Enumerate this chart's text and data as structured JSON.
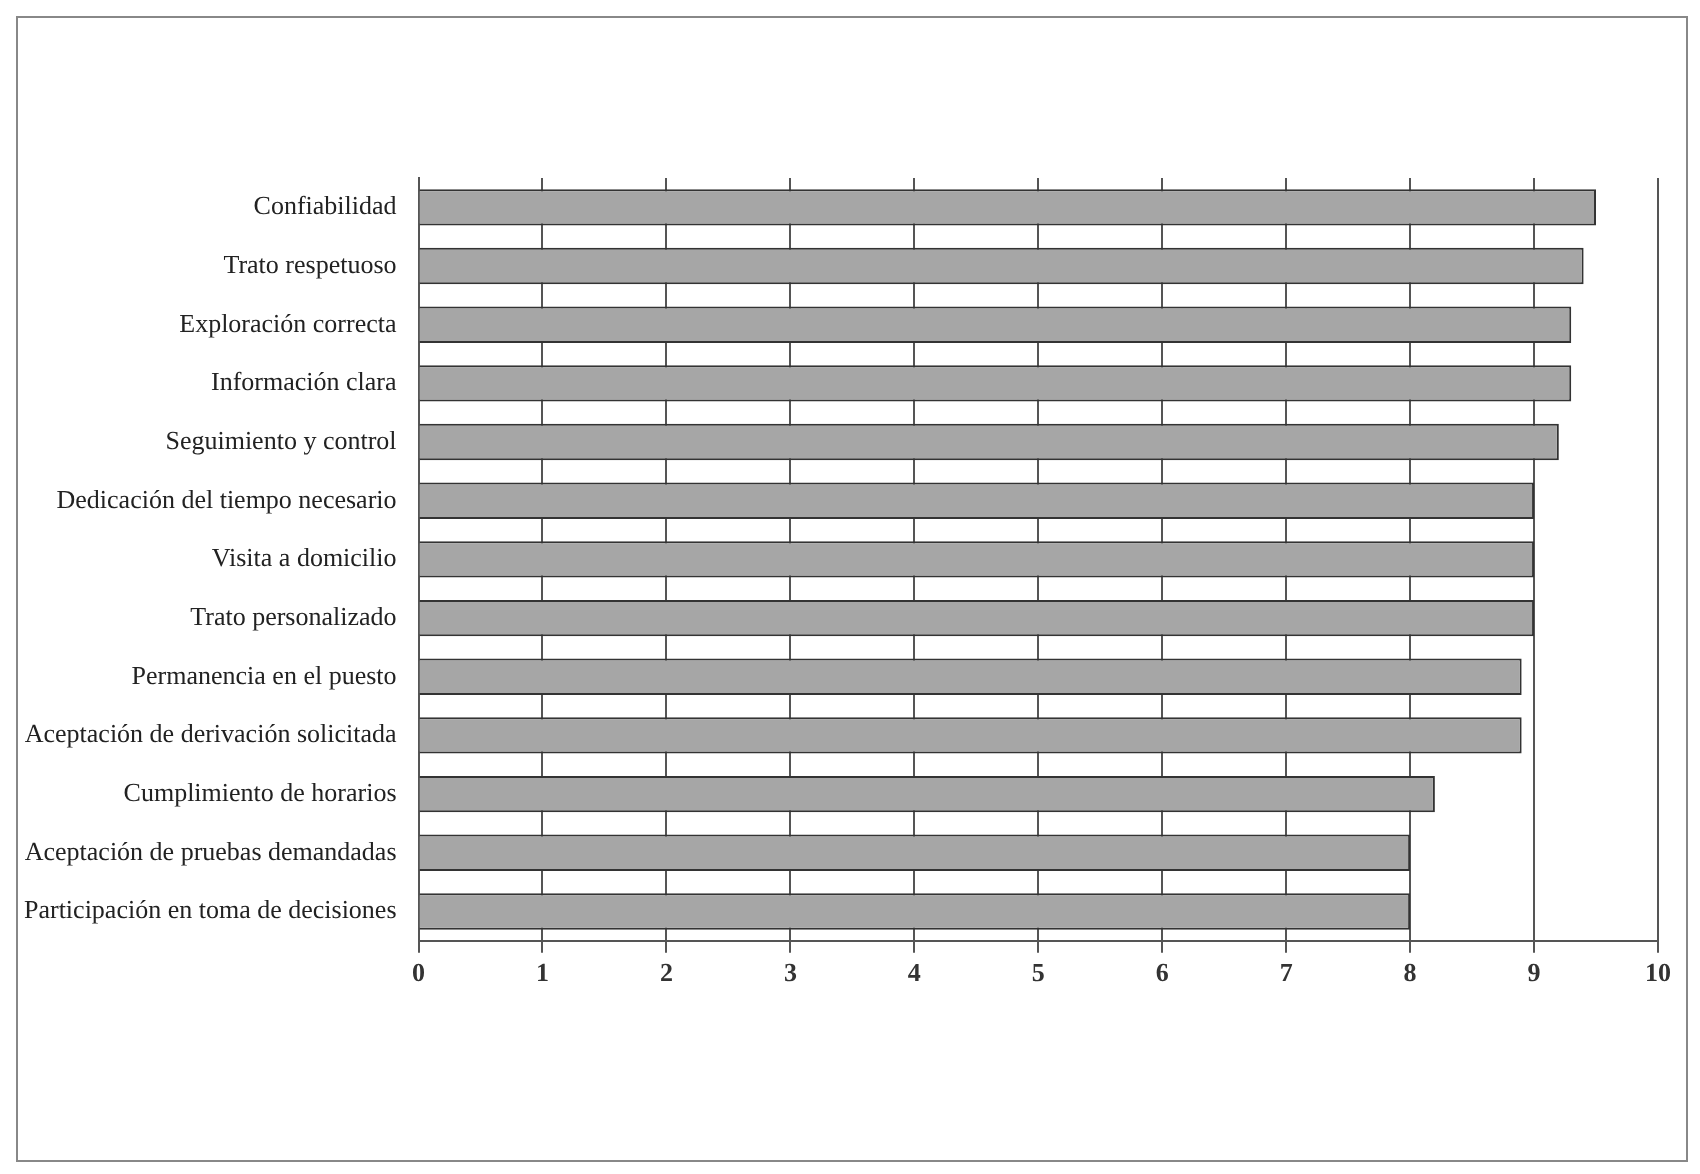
{
  "chart_data": {
    "type": "bar",
    "orientation": "horizontal",
    "categories": [
      "Confiabilidad",
      "Trato respetuoso",
      "Exploración correcta",
      "Información clara",
      "Seguimiento y control",
      "Dedicación del tiempo necesario",
      "Visita a domicilio",
      "Trato personalizado",
      "Permanencia en el puesto",
      "Aceptación de derivación solicitada",
      "Cumplimiento de horarios",
      "Aceptación de pruebas demandadas",
      "Participación en toma de decisiones"
    ],
    "values": [
      9.5,
      9.4,
      9.3,
      9.3,
      9.2,
      9.0,
      9.0,
      9.0,
      8.9,
      8.9,
      8.2,
      8.0,
      8.0
    ],
    "color": "#a6a6a6",
    "xlim": [
      0,
      10
    ],
    "xticks": [
      0,
      1,
      2,
      3,
      4,
      5,
      6,
      7,
      8,
      9,
      10
    ],
    "grid": "x",
    "legend": false
  }
}
